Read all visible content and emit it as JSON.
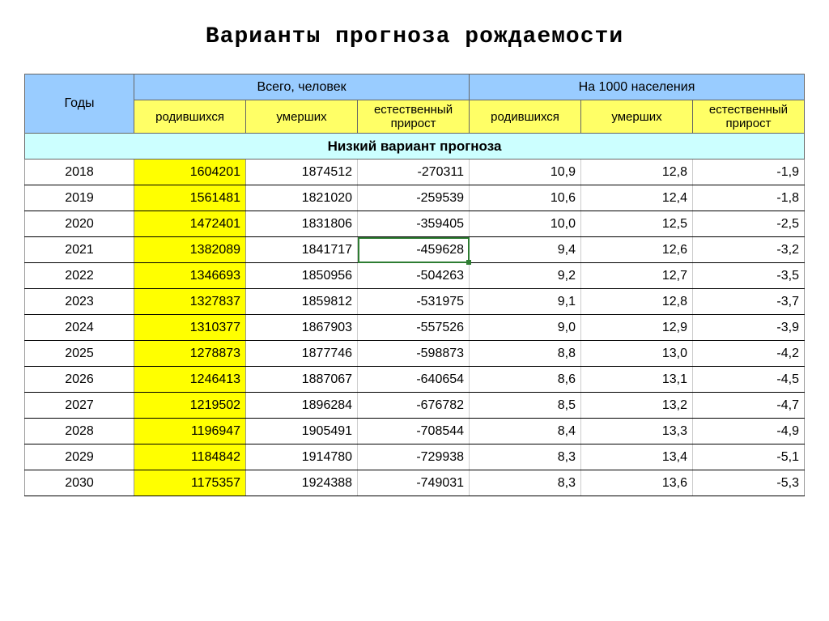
{
  "title": "Варианты прогноза рождаемости",
  "header": {
    "years": "Годы",
    "group_people": "Всего, человек",
    "group_per1000": "На 1000 населения",
    "born": "родившихся",
    "died": "умерших",
    "natural": "естественный прирост"
  },
  "section_label": "Низкий вариант прогноза",
  "columns_widths": [
    "14%",
    "14.3%",
    "14.3%",
    "14.3%",
    "14.3%",
    "14.3%",
    "14.3%"
  ],
  "colors": {
    "header_bg": "#99ccff",
    "subheader_bg": "#ffff66",
    "section_bg": "#ccffff",
    "highlight_bg": "#ffff00",
    "grid": "#666666",
    "selection": "#2e7d32"
  },
  "selected_cell": {
    "row_index": 3,
    "col_index": 3
  },
  "rows": [
    {
      "year": "2018",
      "born": "1604201",
      "died": "1874512",
      "nat": "-270311",
      "born_r": "10,9",
      "died_r": "12,8",
      "nat_r": "-1,9"
    },
    {
      "year": "2019",
      "born": "1561481",
      "died": "1821020",
      "nat": "-259539",
      "born_r": "10,6",
      "died_r": "12,4",
      "nat_r": "-1,8"
    },
    {
      "year": "2020",
      "born": "1472401",
      "died": "1831806",
      "nat": "-359405",
      "born_r": "10,0",
      "died_r": "12,5",
      "nat_r": "-2,5"
    },
    {
      "year": "2021",
      "born": "1382089",
      "died": "1841717",
      "nat": "-459628",
      "born_r": "9,4",
      "died_r": "12,6",
      "nat_r": "-3,2"
    },
    {
      "year": "2022",
      "born": "1346693",
      "died": "1850956",
      "nat": "-504263",
      "born_r": "9,2",
      "died_r": "12,7",
      "nat_r": "-3,5"
    },
    {
      "year": "2023",
      "born": "1327837",
      "died": "1859812",
      "nat": "-531975",
      "born_r": "9,1",
      "died_r": "12,8",
      "nat_r": "-3,7"
    },
    {
      "year": "2024",
      "born": "1310377",
      "died": "1867903",
      "nat": "-557526",
      "born_r": "9,0",
      "died_r": "12,9",
      "nat_r": "-3,9"
    },
    {
      "year": "2025",
      "born": "1278873",
      "died": "1877746",
      "nat": "-598873",
      "born_r": "8,8",
      "died_r": "13,0",
      "nat_r": "-4,2"
    },
    {
      "year": "2026",
      "born": "1246413",
      "died": "1887067",
      "nat": "-640654",
      "born_r": "8,6",
      "died_r": "13,1",
      "nat_r": "-4,5"
    },
    {
      "year": "2027",
      "born": "1219502",
      "died": "1896284",
      "nat": "-676782",
      "born_r": "8,5",
      "died_r": "13,2",
      "nat_r": "-4,7"
    },
    {
      "year": "2028",
      "born": "1196947",
      "died": "1905491",
      "nat": "-708544",
      "born_r": "8,4",
      "died_r": "13,3",
      "nat_r": "-4,9"
    },
    {
      "year": "2029",
      "born": "1184842",
      "died": "1914780",
      "nat": "-729938",
      "born_r": "8,3",
      "died_r": "13,4",
      "nat_r": "-5,1"
    },
    {
      "year": "2030",
      "born": "1175357",
      "died": "1924388",
      "nat": "-749031",
      "born_r": "8,3",
      "died_r": "13,6",
      "nat_r": "-5,3"
    }
  ]
}
